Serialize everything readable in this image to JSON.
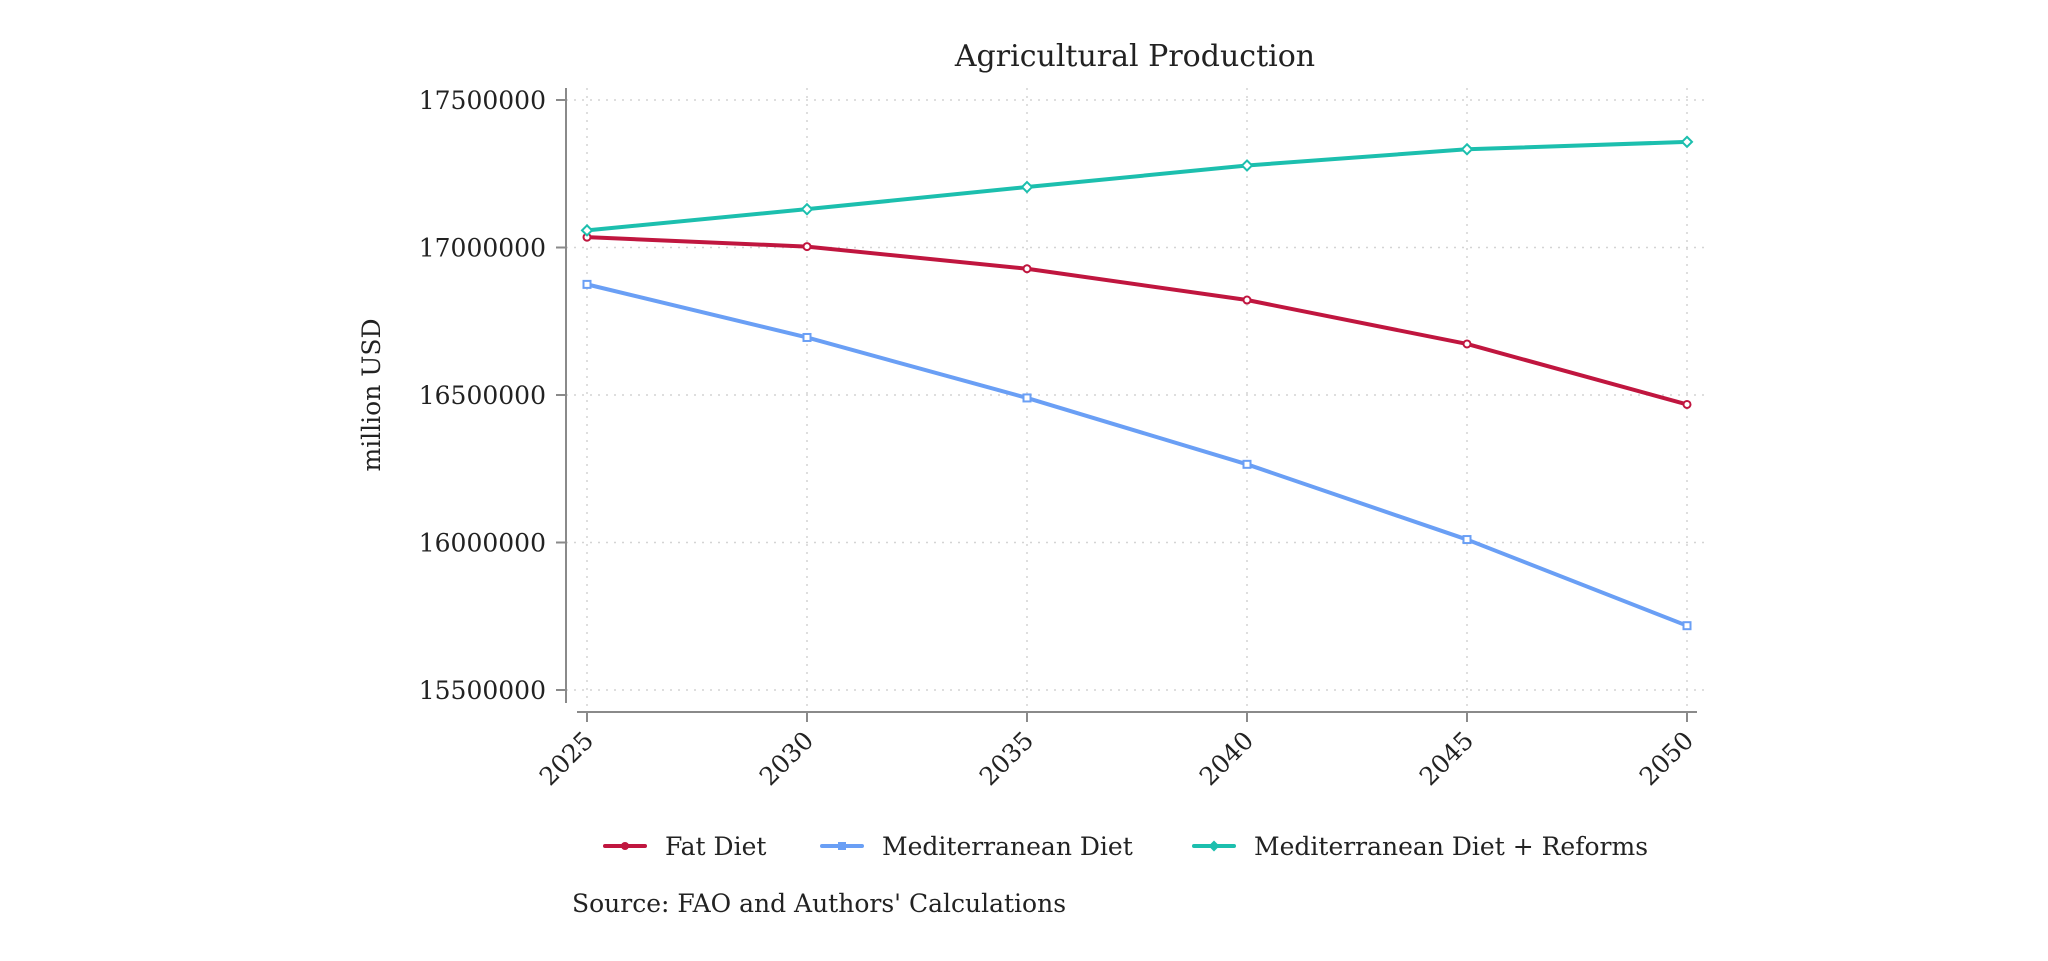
{
  "chart_data": {
    "type": "line",
    "title": "Agricultural Production",
    "xlabel": "",
    "ylabel": "million USD",
    "x": [
      2025,
      2030,
      2035,
      2040,
      2045,
      2050
    ],
    "x_tick_labels": [
      "2025",
      "2030",
      "2035",
      "2040",
      "2045",
      "2050"
    ],
    "y_ticks": [
      15500000,
      16000000,
      16500000,
      17000000,
      17500000
    ],
    "y_tick_labels": [
      "15500000",
      "16000000",
      "16500000",
      "17000000",
      "17500000"
    ],
    "ylim": [
      15500000,
      17500000
    ],
    "grid": true,
    "legend_position": "bottom",
    "series": [
      {
        "name": "Fat Diet",
        "color": "#c0163f",
        "marker": "circle",
        "values": [
          17035000,
          17003000,
          16928000,
          16822000,
          16673000,
          16468000
        ]
      },
      {
        "name": "Mediterranean Diet",
        "color": "#6a9ff5",
        "marker": "square",
        "values": [
          16875000,
          16695000,
          16490000,
          16265000,
          16010000,
          15718000
        ]
      },
      {
        "name": "Mediterranean Diet + Reforms",
        "color": "#1cbfae",
        "marker": "diamond",
        "values": [
          17058000,
          17130000,
          17205000,
          17278000,
          17333000,
          17358000
        ]
      }
    ],
    "note": "Source: FAO and Authors' Calculations"
  }
}
